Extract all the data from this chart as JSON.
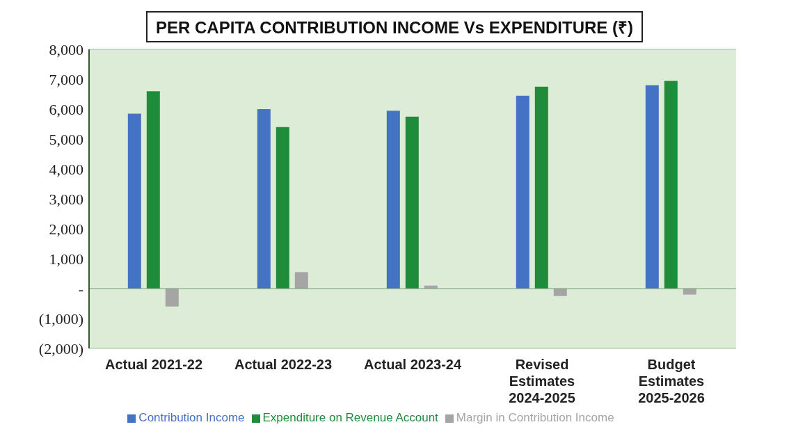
{
  "chart_data": {
    "type": "bar",
    "title": "PER CAPITA CONTRIBUTION INCOME Vs EXPENDITURE (₹)",
    "categories": [
      "Actual 2021-22",
      "Actual 2022-23",
      "Actual 2023-24",
      "Revised Estimates 2024-2025",
      "Budget Estimates 2025-2026"
    ],
    "series": [
      {
        "name": "Contribution Income",
        "color": "#4472c4",
        "values": [
          5850,
          6000,
          5950,
          6450,
          6800
        ]
      },
      {
        "name": "Expenditure on Revenue Account",
        "color": "#1e8c3a",
        "values": [
          6600,
          5400,
          5750,
          6750,
          6950
        ]
      },
      {
        "name": "Margin in Contribution Income",
        "color": "#a5a5a5",
        "values": [
          -600,
          550,
          100,
          -250,
          -200
        ]
      }
    ],
    "ylim": [
      -2000,
      8000
    ],
    "yticks": [
      {
        "value": -2000,
        "label": "(2,000)"
      },
      {
        "value": -1000,
        "label": "(1,000)"
      },
      {
        "value": 0,
        "label": "-"
      },
      {
        "value": 1000,
        "label": "1,000"
      },
      {
        "value": 2000,
        "label": "2,000"
      },
      {
        "value": 3000,
        "label": "3,000"
      },
      {
        "value": 4000,
        "label": "4,000"
      },
      {
        "value": 5000,
        "label": "5,000"
      },
      {
        "value": 6000,
        "label": "6,000"
      },
      {
        "value": 7000,
        "label": "7,000"
      },
      {
        "value": 8000,
        "label": "8,000"
      }
    ],
    "grid": "y",
    "legend": "bottom"
  }
}
